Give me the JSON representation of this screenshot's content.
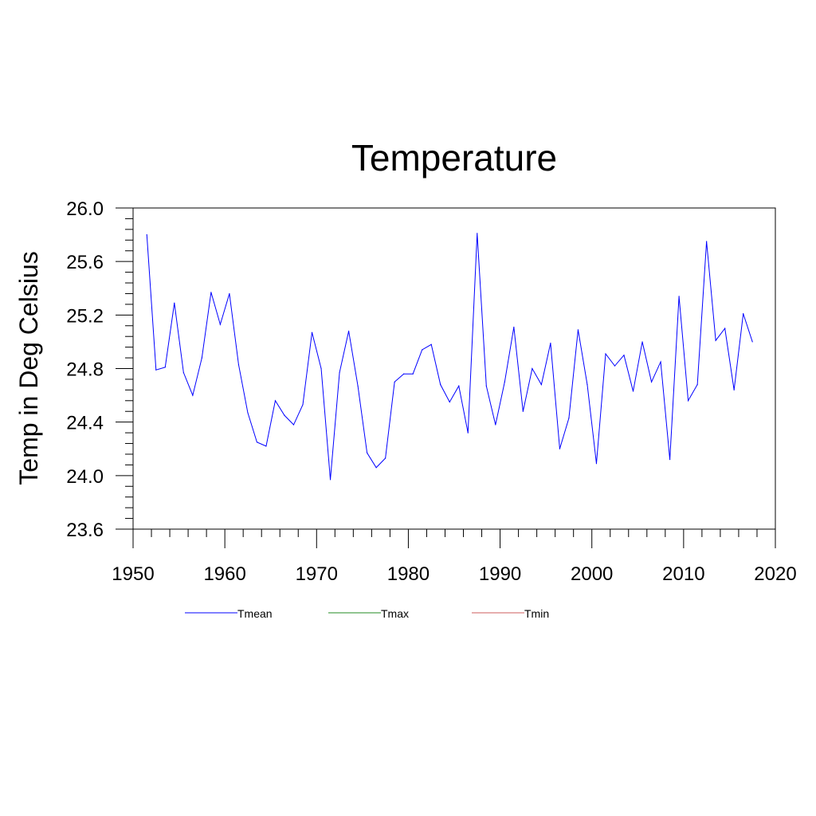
{
  "chart_data": {
    "type": "line",
    "title": "Temperature",
    "xlabel": "",
    "ylabel": "Temp in Deg Celsius",
    "xlim": [
      1950,
      2020
    ],
    "ylim": [
      23.6,
      26.0
    ],
    "x_ticks": [
      1950,
      1960,
      1970,
      1980,
      1990,
      2000,
      2010,
      2020
    ],
    "y_ticks": [
      23.6,
      24.0,
      24.4,
      24.8,
      25.2,
      25.6,
      26.0
    ],
    "y_tick_labels": [
      "23.6",
      "24.0",
      "24.4",
      "24.8",
      "25.2",
      "25.6",
      "26.0"
    ],
    "grid": false,
    "legend_position": "bottom",
    "series": [
      {
        "name": "Tmean",
        "color": "#0000ff",
        "x": [
          1951.5,
          1952.5,
          1953.5,
          1954.5,
          1955.5,
          1956.5,
          1957.5,
          1958.5,
          1959.5,
          1960.5,
          1961.5,
          1962.5,
          1963.5,
          1964.5,
          1965.5,
          1966.5,
          1967.5,
          1968.5,
          1969.5,
          1970.5,
          1971.5,
          1972.5,
          1973.5,
          1974.5,
          1975.5,
          1976.5,
          1977.5,
          1978.5,
          1979.5,
          1980.5,
          1981.5,
          1982.5,
          1983.5,
          1984.5,
          1985.5,
          1986.5,
          1987.5,
          1988.5,
          1989.5,
          1990.5,
          1991.5,
          1992.5,
          1993.5,
          1994.5,
          1995.5,
          1996.5,
          1997.5,
          1998.5,
          1999.5,
          2000.5,
          2001.5,
          2002.5,
          2003.5,
          2004.5,
          2005.5,
          2006.5,
          2007.5,
          2008.5,
          2009.5,
          2010.5,
          2011.5,
          2012.5,
          2013.5,
          2014.5,
          2015.5,
          2016.5,
          2017.5
        ],
        "values": [
          25.8,
          24.79,
          24.81,
          25.29,
          24.77,
          24.6,
          24.88,
          25.37,
          25.13,
          25.36,
          24.83,
          24.47,
          24.25,
          24.22,
          24.56,
          24.45,
          24.38,
          24.53,
          25.07,
          24.8,
          23.97,
          24.77,
          25.08,
          24.67,
          24.17,
          24.06,
          24.13,
          24.7,
          24.76,
          24.76,
          24.94,
          24.98,
          24.68,
          24.55,
          24.67,
          24.32,
          25.81,
          24.67,
          24.38,
          24.7,
          25.11,
          24.48,
          24.8,
          24.68,
          24.99,
          24.2,
          24.43,
          25.09,
          24.68,
          24.09,
          24.91,
          24.82,
          24.9,
          24.63,
          25.0,
          24.7,
          24.85,
          24.12,
          25.34,
          24.56,
          24.68,
          25.75,
          25.01,
          25.1,
          24.64,
          25.21,
          25.0
        ]
      },
      {
        "name": "Tmax",
        "color": "#228b22",
        "x": [],
        "values": []
      },
      {
        "name": "Tmin",
        "color": "#cd5c5c",
        "x": [],
        "values": []
      }
    ]
  }
}
